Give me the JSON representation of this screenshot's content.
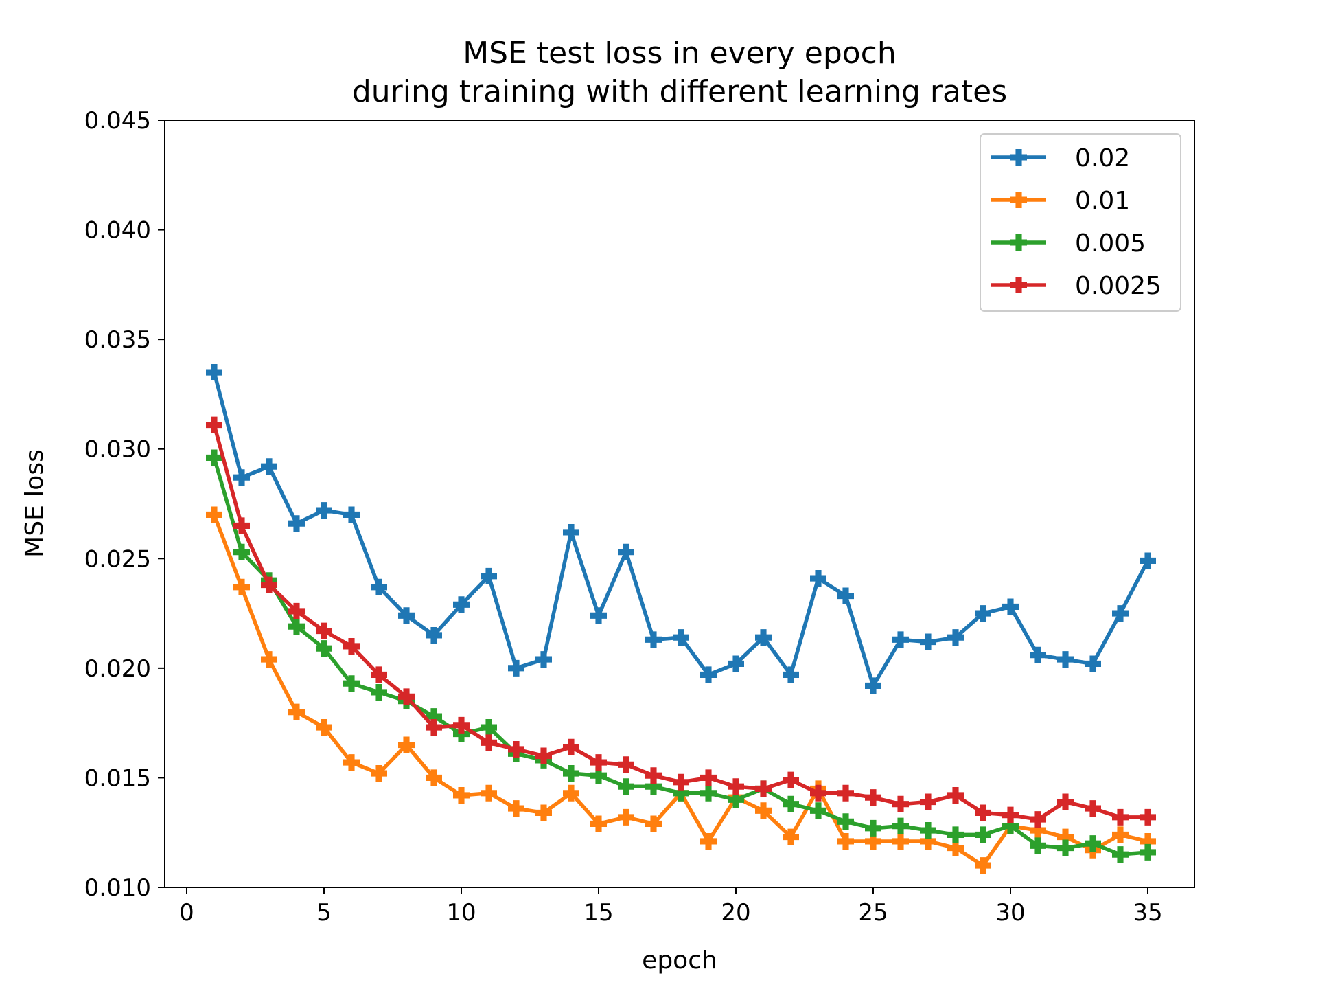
{
  "chart_data": {
    "type": "line",
    "title": [
      "MSE test loss in every epoch",
      "during training with different learning rates"
    ],
    "xlabel": "epoch",
    "ylabel": "MSE loss",
    "xlim": [
      -0.8,
      36.7
    ],
    "ylim": [
      0.01,
      0.045
    ],
    "xticks": [
      0,
      5,
      10,
      15,
      20,
      25,
      30,
      35
    ],
    "yticks": [
      0.01,
      0.015,
      0.02,
      0.025,
      0.03,
      0.035,
      0.04,
      0.045
    ],
    "ytick_labels": [
      "0.010",
      "0.015",
      "0.020",
      "0.025",
      "0.030",
      "0.035",
      "0.040",
      "0.045"
    ],
    "grid": false,
    "legend_position": "top-right",
    "marker": "plus-filled",
    "x": [
      1,
      2,
      3,
      4,
      5,
      6,
      7,
      8,
      9,
      10,
      11,
      12,
      13,
      14,
      15,
      16,
      17,
      18,
      19,
      20,
      21,
      22,
      23,
      24,
      25,
      26,
      27,
      28,
      29,
      30,
      31,
      32,
      33,
      34,
      35
    ],
    "series": [
      {
        "name": "0.02",
        "color": "#1f77b4",
        "values": [
          0.0335,
          0.0287,
          0.0292,
          0.0266,
          0.0272,
          0.027,
          0.0237,
          0.0224,
          0.0215,
          0.0229,
          0.0242,
          0.02,
          0.0204,
          0.0262,
          0.0224,
          0.0253,
          0.0213,
          0.0214,
          0.0197,
          0.0202,
          0.0214,
          0.0197,
          0.0241,
          0.0233,
          0.0192,
          0.0213,
          0.0212,
          0.0214,
          0.0225,
          0.0228,
          0.0206,
          0.0204,
          0.0202,
          0.0225,
          0.0249
        ]
      },
      {
        "name": "0.01",
        "color": "#ff7f0e",
        "values": [
          0.027,
          0.0237,
          0.0204,
          0.018,
          0.0173,
          0.0157,
          0.0152,
          0.0165,
          0.015,
          0.0142,
          0.0143,
          0.0136,
          0.0134,
          0.0143,
          0.0129,
          0.0132,
          0.0129,
          0.0143,
          0.0121,
          0.0141,
          0.0135,
          0.0123,
          0.0145,
          0.0121,
          0.0121,
          0.0121,
          0.0121,
          0.0118,
          0.011,
          0.0128,
          0.0126,
          0.0123,
          0.0117,
          0.0124,
          0.0121
        ]
      },
      {
        "name": "0.005",
        "color": "#2ca02c",
        "values": [
          0.0296,
          0.0253,
          0.024,
          0.0219,
          0.0209,
          0.0193,
          0.0189,
          0.0185,
          0.0178,
          0.017,
          0.0173,
          0.0161,
          0.0158,
          0.0152,
          0.0151,
          0.0146,
          0.0146,
          0.0143,
          0.0143,
          0.014,
          0.0145,
          0.0138,
          0.0135,
          0.013,
          0.0127,
          0.0128,
          0.0126,
          0.0124,
          0.0124,
          0.0128,
          0.0119,
          0.0118,
          0.012,
          0.0115,
          0.0116
        ]
      },
      {
        "name": "0.0025",
        "color": "#d62728",
        "values": [
          0.0311,
          0.0265,
          0.0238,
          0.0226,
          0.0217,
          0.021,
          0.0197,
          0.0187,
          0.0173,
          0.0174,
          0.0166,
          0.0163,
          0.016,
          0.0164,
          0.0157,
          0.0156,
          0.0151,
          0.0148,
          0.015,
          0.0146,
          0.0145,
          0.0149,
          0.0143,
          0.0143,
          0.0141,
          0.0138,
          0.0139,
          0.0142,
          0.0134,
          0.0133,
          0.0131,
          0.0139,
          0.0136,
          0.0132,
          0.0132
        ]
      }
    ]
  }
}
